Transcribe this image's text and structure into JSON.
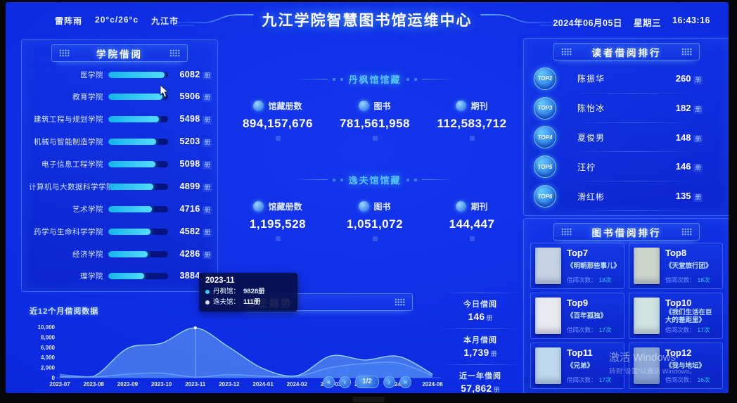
{
  "colors": {
    "background": "#0c2adf",
    "accent_cyan": "#35c9f5",
    "bar_fill": "#3fd2f8",
    "panel_border": "#5f8cff",
    "series_danfeng": "#8fd6ff",
    "series_yifu": "#5a8ef5"
  },
  "header": {
    "weather_condition": "雷阵雨",
    "temperature": "20°c/26°c",
    "city": "九江市",
    "title": "九江学院智慧图书馆运维中心",
    "date": "2024年06月05日",
    "weekday": "星期三",
    "time": "16:43:16"
  },
  "college_panel": {
    "title": "学院借阅",
    "unit": "册",
    "max": 6500,
    "items": [
      {
        "label": "医学院",
        "value": "6082",
        "num": 6082
      },
      {
        "label": "教育学院",
        "value": "5906",
        "num": 5906
      },
      {
        "label": "建筑工程与规划学院",
        "value": "5498",
        "num": 5498
      },
      {
        "label": "机械与智能制造学院",
        "value": "5203",
        "num": 5203
      },
      {
        "label": "电子信息工程学院",
        "value": "5098",
        "num": 5098
      },
      {
        "label": "计算机与大数据科学学院",
        "value": "4899",
        "num": 4899
      },
      {
        "label": "艺术学院",
        "value": "4716",
        "num": 4716
      },
      {
        "label": "药学与生命科学学院",
        "value": "4582",
        "num": 4582
      },
      {
        "label": "经济学院",
        "value": "4286",
        "num": 4286
      },
      {
        "label": "理学院",
        "value": "3884",
        "num": 3884
      }
    ]
  },
  "collections": [
    {
      "title": "丹枫馆馆藏",
      "stats": [
        {
          "label": "馆藏册数",
          "value": "894,157,676"
        },
        {
          "label": "图书",
          "value": "781,561,958"
        },
        {
          "label": "期刊",
          "value": "112,583,712"
        }
      ]
    },
    {
      "title": "逸夫馆馆藏",
      "stats": [
        {
          "label": "馆藏册数",
          "value": "1,195,528"
        },
        {
          "label": "图书",
          "value": "1,051,072"
        },
        {
          "label": "期刊",
          "value": "144,447"
        }
      ]
    }
  ],
  "reader_panel": {
    "title": "读者借阅排行",
    "unit": "册",
    "items": [
      {
        "rank": "TOP2",
        "name": "陈振华",
        "value": "260"
      },
      {
        "rank": "TOP3",
        "name": "陈怡冰",
        "value": "182"
      },
      {
        "rank": "TOP4",
        "name": "夏俊男",
        "value": "148"
      },
      {
        "rank": "TOP5",
        "name": "汪柠",
        "value": "146"
      },
      {
        "rank": "TOP6",
        "name": "滑红彬",
        "value": "135"
      }
    ]
  },
  "book_panel": {
    "title": "图书借阅排行",
    "caption_label": "借阅次数：",
    "items": [
      {
        "rank": "Top7",
        "title": "《明朝那些事儿》",
        "count": "18次",
        "cover": "#c6d3e4"
      },
      {
        "rank": "Top8",
        "title": "《天堂旅行团》",
        "count": "18次",
        "cover": "#ccd5cb"
      },
      {
        "rank": "Top9",
        "title": "《百年孤独》",
        "count": "17次",
        "cover": "#e9eaf0"
      },
      {
        "rank": "Top10",
        "title": "《我们生活在巨大的差距里》",
        "count": "17次",
        "cover": "#cfe3e0"
      },
      {
        "rank": "Top11",
        "title": "《兄弟》",
        "count": "17次",
        "cover": "#bdd7ec"
      },
      {
        "rank": "Top12",
        "title": "《我与地坛》",
        "count": "16次",
        "cover": "#8aa6d6"
      }
    ]
  },
  "trend": {
    "panel_title": "借还趋势",
    "chart_label": "近12个月借阅数据",
    "tooltip": {
      "date": "2023-11",
      "entries": [
        {
          "label": "丹枫馆：",
          "value": "9828册",
          "color": "#35c9f5"
        },
        {
          "label": "逸夫馆：",
          "value": "111册",
          "color": "#d7dde8"
        }
      ]
    },
    "stats": [
      {
        "label": "今日借阅",
        "value": "146",
        "unit": "册"
      },
      {
        "label": "本月借阅",
        "value": "1,739",
        "unit": "册"
      },
      {
        "label": "近一年借阅",
        "value": "57,862",
        "unit": "册"
      }
    ],
    "pagination": {
      "first": "«",
      "prev": "‹",
      "label": "1/2",
      "next": "›",
      "last": "»"
    }
  },
  "watermark": {
    "line1": "激活 Windows",
    "line2": "转到“设置”以激活 Windows。"
  },
  "chart_data": [
    {
      "id": "college-borrow",
      "type": "bar",
      "orientation": "horizontal",
      "title": "学院借阅",
      "unit": "册",
      "xlim": [
        0,
        6500
      ],
      "categories": [
        "医学院",
        "教育学院",
        "建筑工程与规划学院",
        "机械与智能制造学院",
        "电子信息工程学院",
        "计算机与大数据科学学院",
        "艺术学院",
        "药学与生命科学学院",
        "经济学院",
        "理学院"
      ],
      "values": [
        6082,
        5906,
        5498,
        5203,
        5098,
        4899,
        4716,
        4582,
        4286,
        3884
      ]
    },
    {
      "id": "trend",
      "type": "area",
      "title": "借还趋势",
      "label": "近12个月借阅数据",
      "x": [
        "2023-07",
        "2023-08",
        "2023-09",
        "2023-10",
        "2023-11",
        "2023-12",
        "2024-01",
        "2024-02",
        "2024-03",
        "2024-04",
        "2024-05",
        "2024-06"
      ],
      "series": [
        {
          "name": "丹枫馆",
          "color": "#9fdcff",
          "fill": "rgba(140,210,255,0.42)",
          "values": [
            200,
            250,
            5800,
            6800,
            9828,
            6000,
            1800,
            400,
            4300,
            3500,
            4200,
            700
          ]
        },
        {
          "name": "逸夫馆",
          "color": "#6aa0ff",
          "fill": "rgba(70,130,245,0.55)",
          "values": [
            600,
            150,
            700,
            900,
            111,
            600,
            300,
            250,
            2000,
            2800,
            2900,
            400
          ]
        }
      ],
      "ylim": [
        0,
        10000
      ],
      "yticks": [
        "0",
        "2,000",
        "4,000",
        "6,000",
        "8,000",
        "10,000"
      ],
      "highlight_x": "2023-11",
      "grid": false,
      "legend": "none"
    }
  ]
}
